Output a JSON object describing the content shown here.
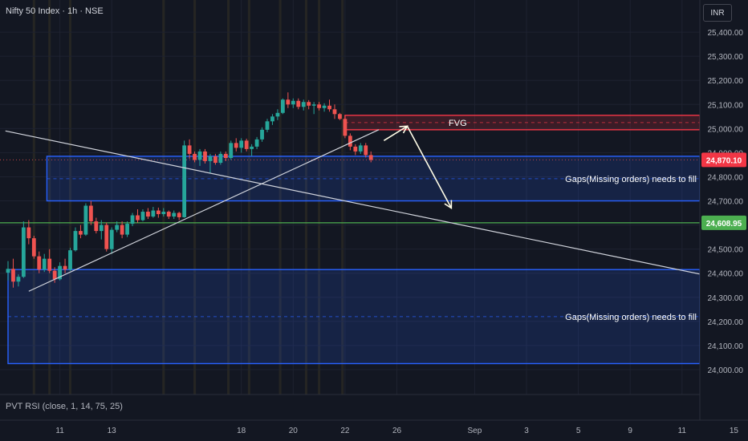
{
  "header": {
    "symbol": "Nifty 50 Index · 1h · NSE",
    "currency": "INR"
  },
  "indicator": {
    "label": "PVT RSI (close, 1, 14, 75, 25)"
  },
  "colors": {
    "background": "#131722",
    "up": "#26a69a",
    "down": "#ef5350",
    "zone_blue": "#2962ff",
    "fvg_red": "#f23645",
    "support_green": "#4caf50",
    "trendline": "#d1d4dc",
    "arrow": "#fffde7"
  },
  "chart_data": {
    "type": "candlestick",
    "ylim": [
      23940,
      25520
    ],
    "y_ticks": [
      24000,
      24100,
      24200,
      24300,
      24400,
      24500,
      24600,
      24700,
      24800,
      24900,
      25000,
      25100,
      25200,
      25300,
      25400
    ],
    "y_tick_labels": [
      "24,000.00",
      "24,100.00",
      "24,200.00",
      "24,300.00",
      "24,400.00",
      "24,500.00",
      "24,600.00",
      "24,700.00",
      "24,800.00",
      "24,900.00",
      "25,000.00",
      "25,100.00",
      "25,200.00",
      "25,300.00",
      "25,400.00"
    ],
    "x_ticks": [
      {
        "label": "11",
        "day": 11
      },
      {
        "label": "13",
        "day": 13
      },
      {
        "label": "18",
        "day": 18
      },
      {
        "label": "20",
        "day": 20
      },
      {
        "label": "22",
        "day": 22
      },
      {
        "label": "26",
        "day": 24
      },
      {
        "label": "Sep",
        "day": 27
      },
      {
        "label": "3",
        "day": 29
      },
      {
        "label": "5",
        "day": 31
      },
      {
        "label": "9",
        "day": 33
      },
      {
        "label": "11",
        "day": 35
      },
      {
        "label": "15",
        "day": 37
      }
    ],
    "price_labels": [
      {
        "value": 24870.1,
        "text": "24,870.10",
        "color": "#f23645"
      },
      {
        "value": 24608.95,
        "text": "24,608.95",
        "color": "#4caf50"
      }
    ],
    "zones": [
      {
        "kind": "blue",
        "top": 24885,
        "bottom": 24700,
        "mid": 24792,
        "day_start": 10.5,
        "label": "Gaps(Missing orders) needs to fill"
      },
      {
        "kind": "blue",
        "top": 24415,
        "bottom": 24025,
        "mid": 24220,
        "day_start": 9,
        "label": "Gaps(Missing orders) needs to fill"
      },
      {
        "kind": "red",
        "top": 25055,
        "bottom": 24995,
        "mid": 25025,
        "day_start": 22,
        "label": "FVG"
      }
    ],
    "support_line": 24608.95,
    "trendlines": [
      {
        "from": [
          8.9,
          24990
        ],
        "to": [
          38,
          24345
        ]
      },
      {
        "from": [
          9.8,
          24325
        ],
        "to": [
          23.3,
          24995
        ]
      }
    ],
    "projection": [
      [
        23.5,
        24950
      ],
      [
        24.4,
        25010
      ],
      [
        26.1,
        24670
      ]
    ],
    "highlight_days": [
      10,
      10.6,
      11.4,
      15,
      16.2,
      17.5,
      18.3,
      19.5,
      20.5,
      21,
      21.9
    ],
    "candles": [
      {
        "d": 9.0,
        "o": 24402,
        "h": 24450,
        "l": 24370,
        "c": 24418
      },
      {
        "d": 9.2,
        "o": 24418,
        "h": 24460,
        "l": 24340,
        "c": 24365
      },
      {
        "d": 9.4,
        "o": 24365,
        "h": 24395,
        "l": 24345,
        "c": 24385
      },
      {
        "d": 9.6,
        "o": 24385,
        "h": 24615,
        "l": 24380,
        "c": 24590
      },
      {
        "d": 9.8,
        "o": 24590,
        "h": 24620,
        "l": 24520,
        "c": 24545
      },
      {
        "d": 10.0,
        "o": 24545,
        "h": 24555,
        "l": 24460,
        "c": 24470
      },
      {
        "d": 10.2,
        "o": 24470,
        "h": 24490,
        "l": 24400,
        "c": 24415
      },
      {
        "d": 10.4,
        "o": 24415,
        "h": 24480,
        "l": 24405,
        "c": 24460
      },
      {
        "d": 10.6,
        "o": 24460,
        "h": 24500,
        "l": 24400,
        "c": 24410
      },
      {
        "d": 10.8,
        "o": 24410,
        "h": 24425,
        "l": 24360,
        "c": 24375
      },
      {
        "d": 11.0,
        "o": 24375,
        "h": 24445,
        "l": 24370,
        "c": 24430
      },
      {
        "d": 11.2,
        "o": 24430,
        "h": 24460,
        "l": 24400,
        "c": 24415
      },
      {
        "d": 11.4,
        "o": 24415,
        "h": 24505,
        "l": 24410,
        "c": 24495
      },
      {
        "d": 11.6,
        "o": 24495,
        "h": 24590,
        "l": 24490,
        "c": 24575
      },
      {
        "d": 11.8,
        "o": 24575,
        "h": 24600,
        "l": 24545,
        "c": 24560
      },
      {
        "d": 12.0,
        "o": 24560,
        "h": 24690,
        "l": 24555,
        "c": 24680
      },
      {
        "d": 12.2,
        "o": 24680,
        "h": 24700,
        "l": 24600,
        "c": 24615
      },
      {
        "d": 12.4,
        "o": 24615,
        "h": 24630,
        "l": 24565,
        "c": 24575
      },
      {
        "d": 12.6,
        "o": 24575,
        "h": 24620,
        "l": 24540,
        "c": 24600
      },
      {
        "d": 12.8,
        "o": 24600,
        "h": 24610,
        "l": 24490,
        "c": 24500
      },
      {
        "d": 13.0,
        "o": 24500,
        "h": 24590,
        "l": 24480,
        "c": 24580
      },
      {
        "d": 13.2,
        "o": 24580,
        "h": 24615,
        "l": 24570,
        "c": 24600
      },
      {
        "d": 13.4,
        "o": 24600,
        "h": 24615,
        "l": 24545,
        "c": 24560
      },
      {
        "d": 13.6,
        "o": 24560,
        "h": 24615,
        "l": 24550,
        "c": 24605
      },
      {
        "d": 13.8,
        "o": 24605,
        "h": 24650,
        "l": 24595,
        "c": 24640
      },
      {
        "d": 14.0,
        "o": 24640,
        "h": 24665,
        "l": 24610,
        "c": 24620
      },
      {
        "d": 14.2,
        "o": 24620,
        "h": 24665,
        "l": 24615,
        "c": 24655
      },
      {
        "d": 14.4,
        "o": 24655,
        "h": 24670,
        "l": 24625,
        "c": 24635
      },
      {
        "d": 14.6,
        "o": 24635,
        "h": 24675,
        "l": 24630,
        "c": 24660
      },
      {
        "d": 14.8,
        "o": 24660,
        "h": 24672,
        "l": 24630,
        "c": 24645
      },
      {
        "d": 15.0,
        "o": 24645,
        "h": 24670,
        "l": 24635,
        "c": 24655
      },
      {
        "d": 15.2,
        "o": 24655,
        "h": 24660,
        "l": 24625,
        "c": 24635
      },
      {
        "d": 15.4,
        "o": 24635,
        "h": 24660,
        "l": 24625,
        "c": 24650
      },
      {
        "d": 15.6,
        "o": 24650,
        "h": 24655,
        "l": 24620,
        "c": 24632
      },
      {
        "d": 15.8,
        "o": 24632,
        "h": 24950,
        "l": 24630,
        "c": 24930
      },
      {
        "d": 16.0,
        "o": 24930,
        "h": 24955,
        "l": 24875,
        "c": 24895
      },
      {
        "d": 16.2,
        "o": 24895,
        "h": 24905,
        "l": 24860,
        "c": 24870
      },
      {
        "d": 16.4,
        "o": 24870,
        "h": 24915,
        "l": 24845,
        "c": 24905
      },
      {
        "d": 16.6,
        "o": 24905,
        "h": 24915,
        "l": 24855,
        "c": 24865
      },
      {
        "d": 16.8,
        "o": 24865,
        "h": 24895,
        "l": 24815,
        "c": 24885
      },
      {
        "d": 17.0,
        "o": 24885,
        "h": 24895,
        "l": 24850,
        "c": 24858
      },
      {
        "d": 17.2,
        "o": 24858,
        "h": 24905,
        "l": 24850,
        "c": 24895
      },
      {
        "d": 17.4,
        "o": 24895,
        "h": 24905,
        "l": 24865,
        "c": 24878
      },
      {
        "d": 17.6,
        "o": 24878,
        "h": 24950,
        "l": 24870,
        "c": 24940
      },
      {
        "d": 17.8,
        "o": 24940,
        "h": 24960,
        "l": 24905,
        "c": 24920
      },
      {
        "d": 18.0,
        "o": 24920,
        "h": 24960,
        "l": 24900,
        "c": 24950
      },
      {
        "d": 18.2,
        "o": 24950,
        "h": 24958,
        "l": 24905,
        "c": 24915
      },
      {
        "d": 18.4,
        "o": 24915,
        "h": 24935,
        "l": 24885,
        "c": 24925
      },
      {
        "d": 18.6,
        "o": 24925,
        "h": 24965,
        "l": 24915,
        "c": 24955
      },
      {
        "d": 18.8,
        "o": 24955,
        "h": 25005,
        "l": 24945,
        "c": 24995
      },
      {
        "d": 19.0,
        "o": 24995,
        "h": 25040,
        "l": 24985,
        "c": 25030
      },
      {
        "d": 19.2,
        "o": 25030,
        "h": 25060,
        "l": 25015,
        "c": 25050
      },
      {
        "d": 19.4,
        "o": 25050,
        "h": 25080,
        "l": 25035,
        "c": 25065
      },
      {
        "d": 19.6,
        "o": 25065,
        "h": 25125,
        "l": 25060,
        "c": 25120
      },
      {
        "d": 19.8,
        "o": 25120,
        "h": 25150,
        "l": 25085,
        "c": 25100
      },
      {
        "d": 20.0,
        "o": 25100,
        "h": 25125,
        "l": 25085,
        "c": 25115
      },
      {
        "d": 20.2,
        "o": 25115,
        "h": 25125,
        "l": 25080,
        "c": 25090
      },
      {
        "d": 20.4,
        "o": 25090,
        "h": 25120,
        "l": 25075,
        "c": 25110
      },
      {
        "d": 20.6,
        "o": 25110,
        "h": 25118,
        "l": 25080,
        "c": 25095
      },
      {
        "d": 20.8,
        "o": 25095,
        "h": 25110,
        "l": 25060,
        "c": 25100
      },
      {
        "d": 21.0,
        "o": 25100,
        "h": 25110,
        "l": 25075,
        "c": 25085
      },
      {
        "d": 21.2,
        "o": 25085,
        "h": 25105,
        "l": 25070,
        "c": 25095
      },
      {
        "d": 21.4,
        "o": 25095,
        "h": 25120,
        "l": 25070,
        "c": 25080
      },
      {
        "d": 21.6,
        "o": 25080,
        "h": 25100,
        "l": 25040,
        "c": 25060
      },
      {
        "d": 21.8,
        "o": 25060,
        "h": 25065,
        "l": 25035,
        "c": 25040
      },
      {
        "d": 22.0,
        "o": 25040,
        "h": 25055,
        "l": 24960,
        "c": 24970
      },
      {
        "d": 22.2,
        "o": 24970,
        "h": 24980,
        "l": 24910,
        "c": 24925
      },
      {
        "d": 22.4,
        "o": 24925,
        "h": 24935,
        "l": 24890,
        "c": 24905
      },
      {
        "d": 22.6,
        "o": 24905,
        "h": 24940,
        "l": 24895,
        "c": 24930
      },
      {
        "d": 22.8,
        "o": 24930,
        "h": 24940,
        "l": 24880,
        "c": 24890
      },
      {
        "d": 23.0,
        "o": 24890,
        "h": 24905,
        "l": 24860,
        "c": 24870
      }
    ]
  }
}
